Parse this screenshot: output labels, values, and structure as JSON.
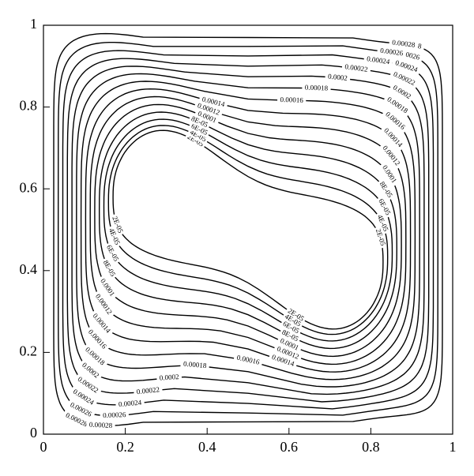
{
  "chart_data": {
    "type": "contour",
    "levels": [
      {
        "value": 2e-05,
        "label": "2E-05"
      },
      {
        "value": 4e-05,
        "label": "4E-05"
      },
      {
        "value": 6e-05,
        "label": "6E-05"
      },
      {
        "value": 8e-05,
        "label": "8E-05"
      },
      0.0001,
      0.00012,
      0.00014,
      0.00016,
      0.00018,
      0.0002,
      0.00022,
      0.00024,
      0.00026,
      0.00028
    ],
    "color": "#000000",
    "xlim": [
      0,
      1
    ],
    "ylim": [
      0,
      1
    ],
    "xticks": [
      0,
      0.2,
      0.4,
      0.6,
      0.8,
      1
    ],
    "yticks": [
      0,
      0.2,
      0.4,
      0.6,
      0.8,
      1
    ]
  }
}
